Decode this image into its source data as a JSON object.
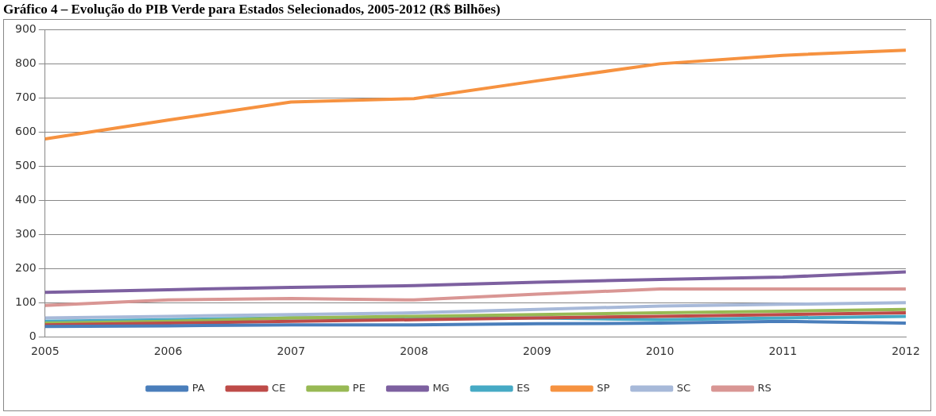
{
  "chart_data": {
    "type": "line",
    "title": "Gráfico 4 – Evolução do PIB Verde para Estados Selecionados, 2005-2012 (R$ Bilhões)",
    "categories": [
      "2005",
      "2006",
      "2007",
      "2008",
      "2009",
      "2010",
      "2011",
      "2012"
    ],
    "series": [
      {
        "name": "PA",
        "color": "#4a7ebb",
        "values": [
          30,
          32,
          35,
          35,
          38,
          40,
          45,
          40
        ]
      },
      {
        "name": "CE",
        "color": "#be4b48",
        "values": [
          35,
          40,
          45,
          50,
          55,
          60,
          65,
          70
        ]
      },
      {
        "name": "PE",
        "color": "#98b954",
        "values": [
          40,
          45,
          55,
          60,
          65,
          70,
          75,
          80
        ]
      },
      {
        "name": "MG",
        "color": "#7d60a0",
        "values": [
          130,
          138,
          145,
          150,
          160,
          168,
          175,
          190
        ]
      },
      {
        "name": "ES",
        "color": "#46aac5",
        "values": [
          45,
          50,
          55,
          55,
          55,
          50,
          55,
          60
        ]
      },
      {
        "name": "SP",
        "color": "#f69240",
        "values": [
          580,
          635,
          688,
          698,
          750,
          800,
          825,
          840
        ]
      },
      {
        "name": "SC",
        "color": "#a7b9d9",
        "values": [
          55,
          60,
          65,
          70,
          80,
          90,
          95,
          100
        ]
      },
      {
        "name": "RS",
        "color": "#d99694",
        "values": [
          92,
          108,
          112,
          108,
          125,
          140,
          140,
          140
        ]
      }
    ],
    "ylim": [
      0,
      900
    ],
    "yticks": [
      0,
      100,
      200,
      300,
      400,
      500,
      600,
      700,
      800,
      900
    ],
    "grid": "y",
    "legend": "bottom",
    "marker": "none",
    "line_style": "solid"
  }
}
